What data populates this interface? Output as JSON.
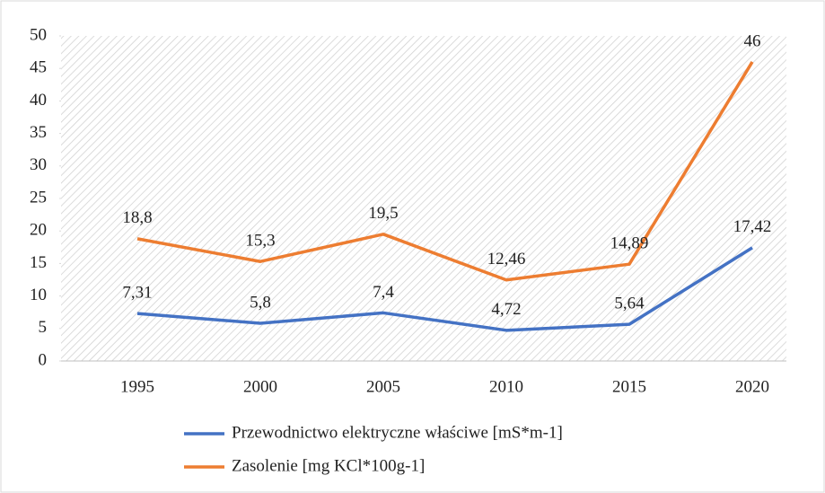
{
  "chart_data": {
    "type": "line",
    "categories": [
      "1995",
      "2000",
      "2005",
      "2010",
      "2015",
      "2020"
    ],
    "series": [
      {
        "name": "Przewodnictwo elektryczne właściwe [mS*m-1]",
        "color": "#4472c4",
        "values": [
          7.31,
          5.8,
          7.4,
          4.72,
          5.64,
          17.42
        ],
        "value_labels": [
          "7,31",
          "5,8",
          "7,4",
          "4,72",
          "5,64",
          "17,42"
        ]
      },
      {
        "name": "Zasolenie [mg KCl*100g-1]",
        "color": "#ed7d31",
        "values": [
          18.8,
          15.3,
          19.5,
          12.46,
          14.89,
          46
        ],
        "value_labels": [
          "18,8",
          "15,3",
          "19,5",
          "12,46",
          "14,89",
          "46"
        ]
      }
    ],
    "ylim": [
      0,
      50
    ],
    "yticks": [
      0,
      5,
      10,
      15,
      20,
      25,
      30,
      35,
      40,
      45,
      50
    ],
    "legend": "bottom"
  }
}
